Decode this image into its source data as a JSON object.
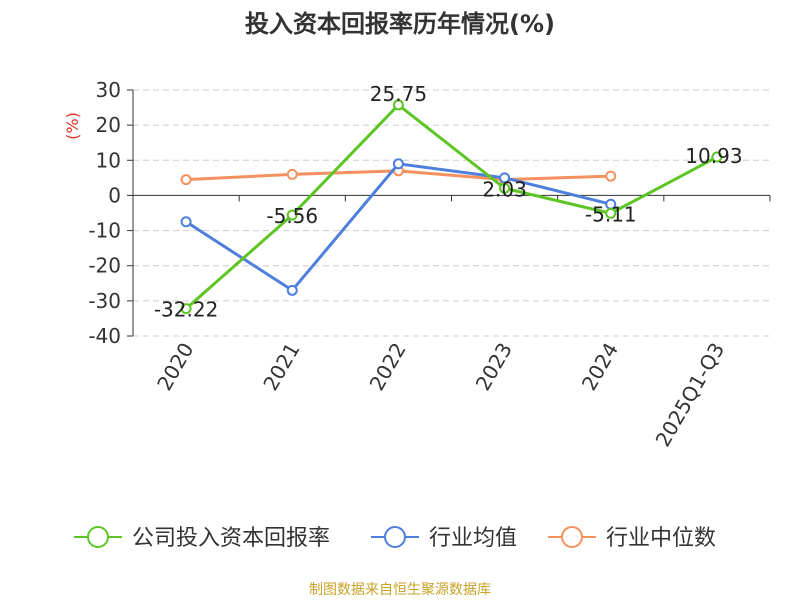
{
  "title": "投入资本回报率历年情况(%)",
  "source": "制图数据来自恒生聚源数据库",
  "chart_data": {
    "type": "line",
    "title": "投入资本回报率历年情况(%)",
    "ylabel": "(%)",
    "xlabel": "",
    "categories": [
      "2020",
      "2021",
      "2022",
      "2023",
      "2024",
      "2025Q1-Q3"
    ],
    "ylim": [
      -40,
      30
    ],
    "yticks": [
      30,
      20,
      10,
      0,
      -10,
      -20,
      -30,
      -40
    ],
    "ytick_labels": [
      "30",
      "20",
      "10",
      "0",
      "-10",
      "-20",
      "-30",
      "-40"
    ],
    "grid": true,
    "legend_position": "bottom",
    "series": [
      {
        "name": "公司投入资本回报率",
        "color": "#5cc524",
        "values": [
          -32.22,
          -5.56,
          25.75,
          2.03,
          -5.11,
          10.93
        ],
        "data_labels": [
          "-32.22",
          "-5.56",
          "25.75",
          "2.03",
          "-5.11",
          "10.93"
        ]
      },
      {
        "name": "行业均值",
        "color": "#4f7fdc",
        "values": [
          -7.5,
          -27.0,
          9.0,
          5.0,
          -2.5,
          null
        ]
      },
      {
        "name": "行业中位数",
        "color": "#f5915e",
        "values": [
          4.5,
          6.0,
          7.0,
          4.5,
          5.5,
          null
        ]
      }
    ]
  }
}
